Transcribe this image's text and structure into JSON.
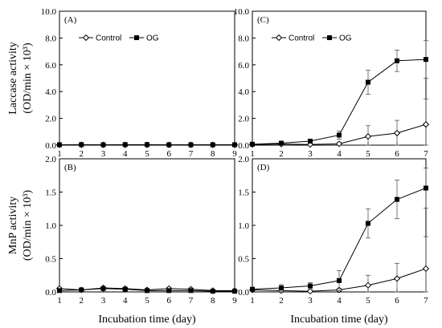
{
  "chart_data": [
    {
      "id": "A",
      "type": "line",
      "panel_label": "(A)",
      "x": [
        1,
        2,
        3,
        4,
        5,
        6,
        7,
        8,
        9
      ],
      "xticks": [
        "1",
        "2",
        "3",
        "4",
        "5",
        "6",
        "7",
        "8",
        "9"
      ],
      "xlim": [
        1,
        9
      ],
      "ylim": [
        0,
        10
      ],
      "yticks": [
        "0.0",
        "2.0",
        "4.0",
        "6.0",
        "8.0",
        "10.0"
      ],
      "ylabel_line1": "Laccase activity",
      "ylabel_line2": "(OD/min × 10³)",
      "legend": [
        "Control",
        "OG"
      ],
      "legend_position": "top-left",
      "series": [
        {
          "name": "Control",
          "marker": "open-diamond",
          "values": [
            0.02,
            0.02,
            0.02,
            0.02,
            0.02,
            0.02,
            0.02,
            0.02,
            0.02
          ],
          "errors": [
            0,
            0,
            0,
            0,
            0,
            0,
            0,
            0,
            0
          ]
        },
        {
          "name": "OG",
          "marker": "filled-square",
          "values": [
            0.03,
            0.04,
            0.03,
            0.04,
            0.04,
            0.03,
            0.03,
            0.03,
            0.03
          ],
          "errors": [
            0,
            0,
            0,
            0,
            0,
            0,
            0,
            0,
            0
          ]
        }
      ]
    },
    {
      "id": "B",
      "type": "line",
      "panel_label": "(B)",
      "x": [
        1,
        2,
        3,
        4,
        5,
        6,
        7,
        8,
        9
      ],
      "xticks": [
        "1",
        "2",
        "3",
        "4",
        "5",
        "6",
        "7",
        "8",
        "9"
      ],
      "xlim": [
        1,
        9
      ],
      "ylim": [
        0,
        2
      ],
      "yticks": [
        "0.0",
        "0.5",
        "1.0",
        "1.5",
        "2.0"
      ],
      "ylabel_line1": "MnP activity",
      "ylabel_line2": "(OD/min × 10³)",
      "xlabel": "Incubation time (day)",
      "series": [
        {
          "name": "Control",
          "marker": "open-diamond",
          "values": [
            0.05,
            0.03,
            0.06,
            0.05,
            0.03,
            0.05,
            0.04,
            0.02,
            0.02
          ],
          "errors": [
            0.02,
            0.02,
            0.02,
            0.02,
            0.02,
            0.02,
            0.02,
            0.01,
            0.01
          ]
        },
        {
          "name": "OG",
          "marker": "filled-square",
          "values": [
            0.02,
            0.03,
            0.05,
            0.04,
            0.02,
            0.02,
            0.02,
            0.01,
            0.01
          ],
          "errors": [
            0.02,
            0.02,
            0.02,
            0.02,
            0.02,
            0.01,
            0.01,
            0.01,
            0.01
          ]
        }
      ]
    },
    {
      "id": "C",
      "type": "line",
      "panel_label": "(C)",
      "x": [
        1,
        2,
        3,
        4,
        5,
        6,
        7
      ],
      "xticks": [
        "1",
        "2",
        "3",
        "4",
        "5",
        "6",
        "7"
      ],
      "xlim": [
        1,
        7
      ],
      "ylim": [
        0,
        10
      ],
      "yticks": [
        "0.0",
        "2.0",
        "4.0",
        "6.0",
        "8.0",
        "10.0"
      ],
      "legend": [
        "Control",
        "OG"
      ],
      "legend_position": "top-left",
      "series": [
        {
          "name": "Control",
          "marker": "open-diamond",
          "values": [
            0.05,
            0.08,
            0.05,
            0.1,
            0.65,
            0.9,
            1.55
          ],
          "errors": [
            0,
            0,
            0,
            0.1,
            0.8,
            0.95,
            1.9
          ]
        },
        {
          "name": "OG",
          "marker": "filled-square",
          "values": [
            0.07,
            0.15,
            0.3,
            0.75,
            4.7,
            6.3,
            6.4
          ],
          "errors": [
            0,
            0.05,
            0.1,
            0.3,
            0.9,
            0.8,
            1.4
          ]
        }
      ]
    },
    {
      "id": "D",
      "type": "line",
      "panel_label": "(D)",
      "x": [
        1,
        2,
        3,
        4,
        5,
        6,
        7
      ],
      "xticks": [
        "1",
        "2",
        "3",
        "4",
        "5",
        "6",
        "7"
      ],
      "xlim": [
        1,
        7
      ],
      "ylim": [
        0,
        2
      ],
      "yticks": [
        "0.0",
        "0.5",
        "1.0",
        "1.5",
        "2.0"
      ],
      "xlabel": "Incubation time (day)",
      "series": [
        {
          "name": "Control",
          "marker": "open-diamond",
          "values": [
            0.03,
            0.02,
            0.01,
            0.03,
            0.1,
            0.2,
            0.35
          ],
          "errors": [
            0,
            0,
            0,
            0.02,
            0.15,
            0.23,
            0.48
          ]
        },
        {
          "name": "OG",
          "marker": "filled-square",
          "values": [
            0.04,
            0.06,
            0.09,
            0.17,
            1.03,
            1.39,
            1.56
          ],
          "errors": [
            0.02,
            0.05,
            0.05,
            0.15,
            0.22,
            0.29,
            0.3
          ]
        }
      ]
    }
  ]
}
